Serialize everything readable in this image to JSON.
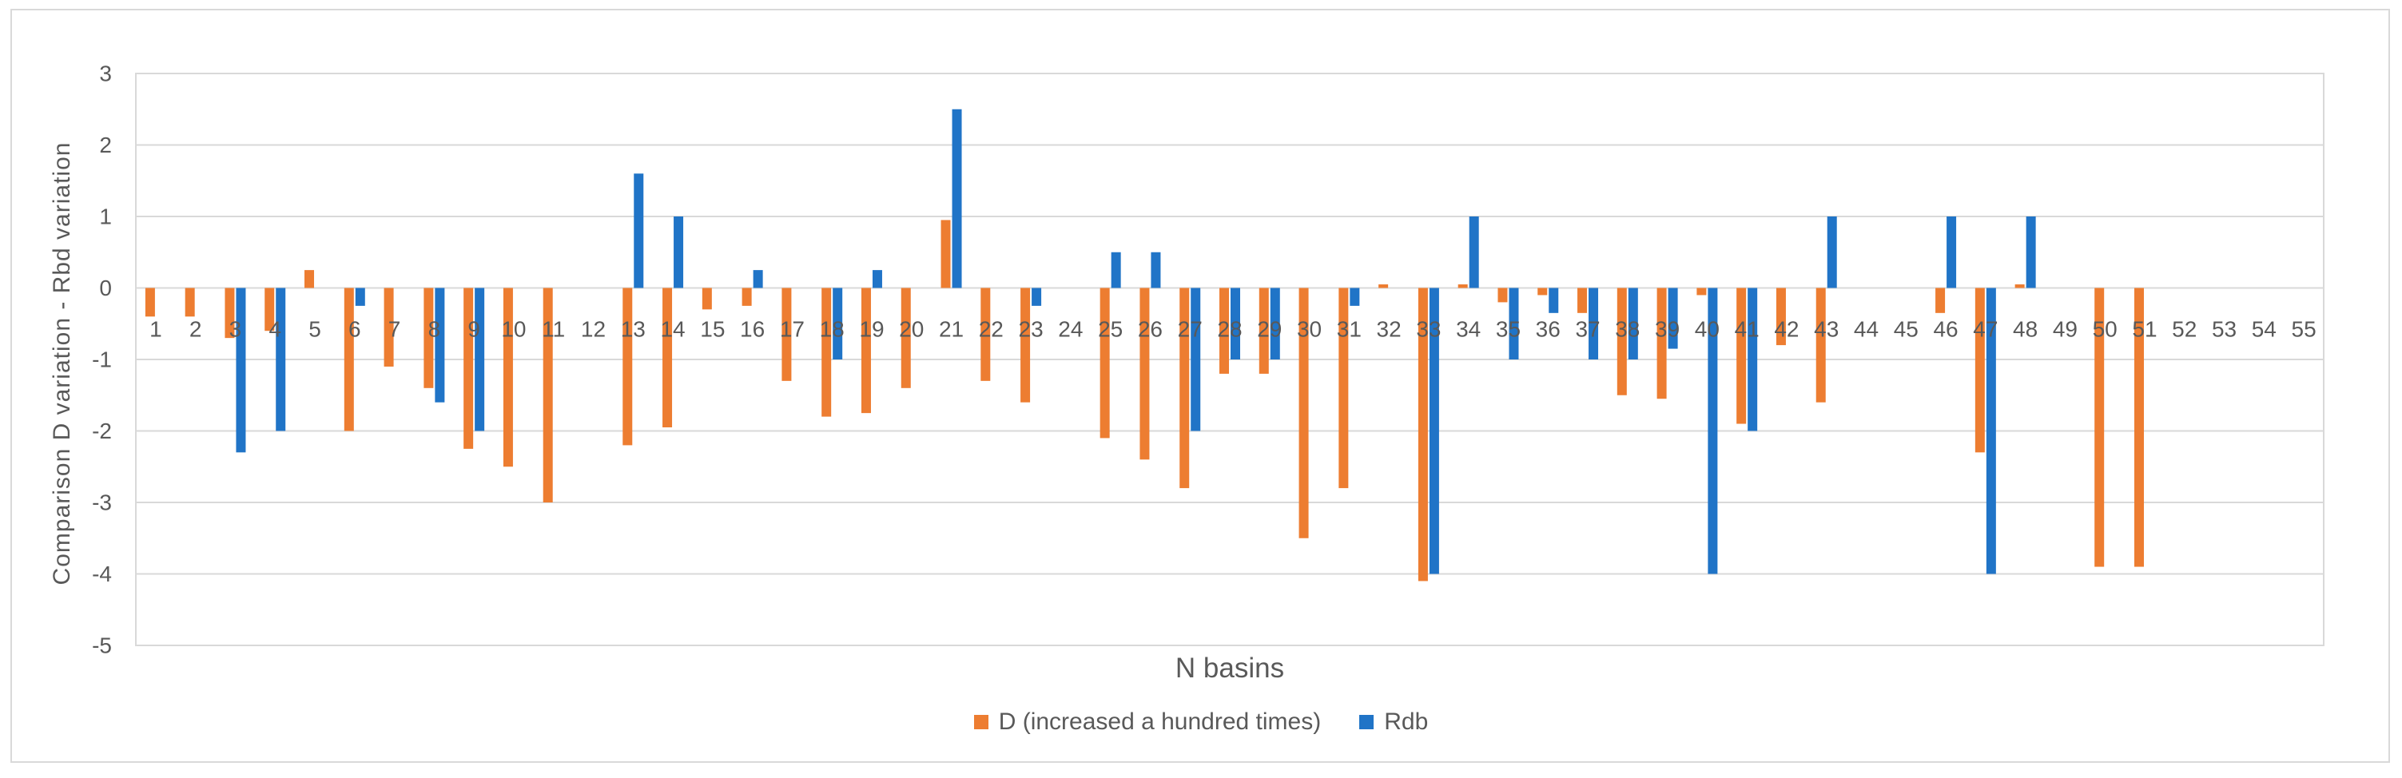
{
  "chart": {
    "y_axis_title": "Comparison D variation - Rbd variation",
    "x_axis_title": "N basins"
  },
  "chart_data": {
    "type": "bar",
    "title": "",
    "xlabel": "N basins",
    "ylabel": "Comparison D variation - Rbd variation",
    "categories": [
      "1",
      "2",
      "3",
      "4",
      "5",
      "6",
      "7",
      "8",
      "9",
      "10",
      "11",
      "12",
      "13",
      "14",
      "15",
      "16",
      "17",
      "18",
      "19",
      "20",
      "21",
      "22",
      "23",
      "24",
      "25",
      "26",
      "27",
      "28",
      "29",
      "30",
      "31",
      "32",
      "33",
      "34",
      "35",
      "36",
      "37",
      "38",
      "39",
      "40",
      "41",
      "42",
      "43",
      "44",
      "45",
      "46",
      "47",
      "48",
      "49",
      "50",
      "51",
      "52",
      "53",
      "54",
      "55"
    ],
    "series": [
      {
        "name": "D (increased a hundred times)",
        "color": "#ED7D31",
        "values": [
          -0.4,
          -0.4,
          -0.7,
          -0.6,
          0.25,
          -2.0,
          -1.1,
          -1.4,
          -2.25,
          -2.5,
          -3.0,
          null,
          -2.2,
          -1.95,
          -0.3,
          -0.25,
          -1.3,
          -1.8,
          -1.75,
          -1.4,
          0.95,
          -1.3,
          -1.6,
          null,
          -2.1,
          -2.4,
          -2.8,
          -1.2,
          -1.2,
          -3.5,
          -2.8,
          0.05,
          -4.1,
          0.05,
          -0.2,
          -0.1,
          -0.35,
          -1.5,
          -1.55,
          -0.1,
          -1.9,
          -0.8,
          -1.6,
          null,
          null,
          -0.35,
          -2.3,
          0.05,
          null,
          -3.9,
          -3.9,
          null,
          null,
          null,
          null
        ]
      },
      {
        "name": "Rdb",
        "color": "#2074C7",
        "values": [
          null,
          null,
          -2.3,
          -2.0,
          null,
          -0.25,
          null,
          -1.6,
          -2.0,
          null,
          null,
          null,
          1.6,
          1.0,
          null,
          0.25,
          null,
          -1.0,
          0.25,
          null,
          2.5,
          null,
          -0.25,
          null,
          0.5,
          0.5,
          -2.0,
          -1.0,
          -1.0,
          null,
          -0.25,
          null,
          -4.0,
          1.0,
          -1.0,
          -0.35,
          -1.0,
          -1.0,
          -0.85,
          -4.0,
          -2.0,
          null,
          1.0,
          null,
          null,
          1.0,
          -4.0,
          1.0,
          null,
          null,
          null,
          null,
          null,
          null,
          null
        ]
      }
    ],
    "ylim": [
      -5,
      3
    ],
    "yticks": [
      3,
      2,
      1,
      0,
      -1,
      -2,
      -3,
      -4,
      -5
    ],
    "grid": true,
    "legend_position": "bottom",
    "colors": {
      "gridline": "#d9d9d9",
      "plot_border": "#d9d9d9",
      "text": "#595959"
    }
  }
}
